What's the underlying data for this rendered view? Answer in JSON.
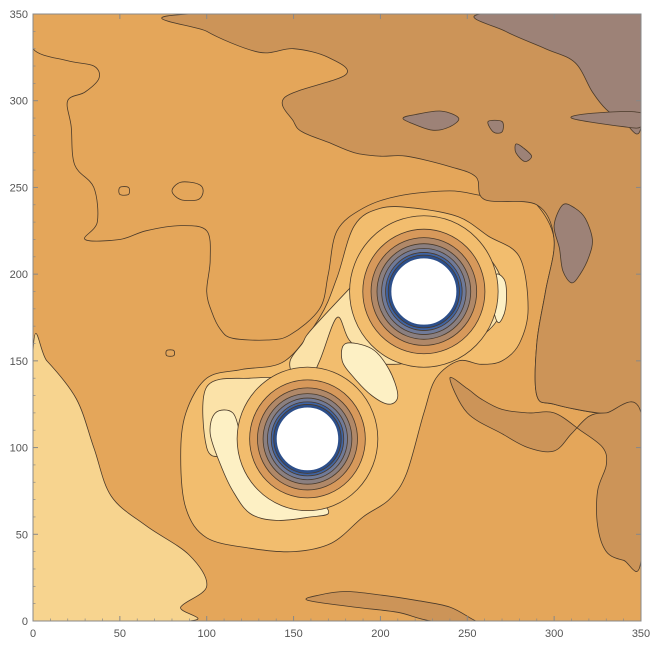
{
  "colors": {
    "level_1": "#f7d48f",
    "level_2": "#f2bd6e",
    "level_3": "#e4a65a",
    "level_4": "#cc9458",
    "level_5": "#9d8277",
    "highlight": "#fdf0c4",
    "pale": "#fbe2a8",
    "ring_1": "#d7995b",
    "ring_2": "#b08868",
    "ring_3": "#8a7f80",
    "ring_4": "#6f7a99",
    "ring_5": "#3e63a3",
    "ring_6": "#2d4f8a",
    "hole": "#ffffff",
    "frame": "#888888",
    "tick_text": "#555555"
  },
  "chart_data": {
    "type": "contour",
    "title": "",
    "xlabel": "",
    "ylabel": "",
    "xlim": [
      0,
      350
    ],
    "ylim": [
      0,
      350
    ],
    "x_ticks": [
      0,
      50,
      100,
      150,
      200,
      250,
      300,
      350
    ],
    "y_ticks": [
      0,
      50,
      100,
      150,
      200,
      250,
      300,
      350
    ],
    "x_tick_labels": [
      "0",
      "50",
      "100",
      "150",
      "200",
      "250",
      "300",
      "350"
    ],
    "y_tick_labels": [
      "0",
      "50",
      "100",
      "150",
      "200",
      "250",
      "300",
      "350"
    ],
    "grid": false,
    "legend": "none",
    "singularities": [
      {
        "x": 158,
        "y": 105,
        "radius": 18
      },
      {
        "x": 225,
        "y": 190,
        "radius": 19
      }
    ],
    "regions": [
      {
        "level": 1,
        "points": [
          [
            0,
            155
          ],
          [
            8,
            150
          ],
          [
            25,
            128
          ],
          [
            35,
            100
          ],
          [
            45,
            72
          ],
          [
            65,
            55
          ],
          [
            90,
            38
          ],
          [
            100,
            20
          ],
          [
            85,
            8
          ],
          [
            90,
            0
          ],
          [
            0,
            0
          ]
        ]
      },
      {
        "level": 3,
        "points": [
          [
            0,
            330
          ],
          [
            20,
            323
          ],
          [
            35,
            320
          ],
          [
            38,
            313
          ],
          [
            30,
            305
          ],
          [
            20,
            300
          ],
          [
            22,
            285
          ],
          [
            24,
            263
          ],
          [
            35,
            250
          ],
          [
            37,
            230
          ],
          [
            30,
            220
          ],
          [
            50,
            220
          ],
          [
            65,
            225
          ],
          [
            85,
            228
          ],
          [
            100,
            225
          ],
          [
            102,
            208
          ],
          [
            100,
            190
          ],
          [
            103,
            178
          ],
          [
            108,
            168
          ],
          [
            115,
            163
          ],
          [
            135,
            162
          ],
          [
            148,
            165
          ],
          [
            165,
            180
          ],
          [
            170,
            200
          ],
          [
            175,
            225
          ],
          [
            190,
            238
          ],
          [
            210,
            245
          ],
          [
            240,
            248
          ],
          [
            260,
            245
          ],
          [
            280,
            243
          ],
          [
            290,
            240
          ],
          [
            300,
            220
          ],
          [
            295,
            190
          ],
          [
            290,
            160
          ],
          [
            290,
            130
          ],
          [
            300,
            125
          ],
          [
            325,
            120
          ],
          [
            345,
            120
          ],
          [
            350,
            120
          ],
          [
            350,
            350
          ],
          [
            0,
            350
          ]
        ]
      },
      {
        "level": 4,
        "points": [
          [
            92,
            350
          ],
          [
            100,
            340
          ],
          [
            130,
            328
          ],
          [
            150,
            330
          ],
          [
            170,
            325
          ],
          [
            180,
            315
          ],
          [
            145,
            302
          ],
          [
            150,
            288
          ],
          [
            155,
            282
          ],
          [
            170,
            276
          ],
          [
            185,
            270
          ],
          [
            200,
            268
          ],
          [
            215,
            268
          ],
          [
            240,
            262
          ],
          [
            255,
            256
          ],
          [
            260,
            243
          ],
          [
            290,
            240
          ],
          [
            300,
            220
          ],
          [
            295,
            190
          ],
          [
            290,
            160
          ],
          [
            290,
            130
          ],
          [
            300,
            125
          ],
          [
            325,
            120
          ],
          [
            345,
            120
          ],
          [
            350,
            120
          ],
          [
            350,
            350
          ]
        ]
      },
      {
        "level": 4,
        "points": [
          [
            240,
            140
          ],
          [
            250,
            120
          ],
          [
            270,
            108
          ],
          [
            285,
            100
          ],
          [
            300,
            98
          ],
          [
            310,
            108
          ],
          [
            320,
            118
          ],
          [
            330,
            120
          ],
          [
            350,
            120
          ],
          [
            350,
            35
          ],
          [
            340,
            35
          ],
          [
            330,
            40
          ],
          [
            325,
            55
          ],
          [
            325,
            75
          ],
          [
            330,
            90
          ],
          [
            328,
            100
          ],
          [
            315,
            110
          ],
          [
            300,
            120
          ],
          [
            285,
            120
          ],
          [
            270,
            122
          ],
          [
            258,
            128
          ],
          [
            250,
            134
          ]
        ]
      },
      {
        "level": 4,
        "points": [
          [
            158,
            12
          ],
          [
            185,
            8
          ],
          [
            210,
            5
          ],
          [
            230,
            0
          ],
          [
            260,
            0
          ],
          [
            255,
            0
          ],
          [
            240,
            8
          ],
          [
            220,
            12
          ],
          [
            200,
            15
          ],
          [
            180,
            17
          ],
          [
            165,
            15
          ]
        ]
      },
      {
        "level": 5,
        "points": [
          [
            258,
            350
          ],
          [
            272,
            340
          ],
          [
            295,
            330
          ],
          [
            312,
            322
          ],
          [
            322,
            305
          ],
          [
            330,
            295
          ],
          [
            340,
            288
          ],
          [
            350,
            285
          ],
          [
            350,
            350
          ]
        ]
      },
      {
        "level": 5,
        "points": [
          [
            310,
            290
          ],
          [
            325,
            293
          ],
          [
            350,
            293
          ],
          [
            350,
            285
          ],
          [
            340,
            285
          ]
        ]
      },
      {
        "level": 5,
        "points": [
          [
            305,
            240
          ],
          [
            312,
            238
          ],
          [
            318,
            232
          ],
          [
            322,
            220
          ],
          [
            320,
            210
          ],
          [
            315,
            200
          ],
          [
            310,
            195
          ],
          [
            305,
            202
          ],
          [
            303,
            215
          ],
          [
            300,
            228
          ]
        ]
      },
      {
        "level": 5,
        "points": [
          [
            213,
            290
          ],
          [
            220,
            292
          ],
          [
            235,
            294
          ],
          [
            245,
            290
          ],
          [
            240,
            285
          ],
          [
            230,
            283
          ],
          [
            218,
            287
          ]
        ]
      },
      {
        "level": 5,
        "points": [
          [
            262,
            288
          ],
          [
            270,
            288
          ],
          [
            270,
            282
          ],
          [
            265,
            282
          ]
        ]
      },
      {
        "level": 5,
        "points": [
          [
            278,
            275
          ],
          [
            282,
            273
          ],
          [
            287,
            268
          ],
          [
            283,
            265
          ],
          [
            278,
            270
          ]
        ]
      },
      {
        "level": 2,
        "points": [
          [
            165,
            175
          ],
          [
            175,
            198
          ],
          [
            185,
            228
          ],
          [
            200,
            238
          ],
          [
            220,
            238
          ],
          [
            245,
            233
          ],
          [
            262,
            222
          ],
          [
            280,
            210
          ],
          [
            285,
            180
          ],
          [
            280,
            160
          ],
          [
            270,
            150
          ],
          [
            258,
            148
          ],
          [
            245,
            150
          ],
          [
            232,
            140
          ],
          [
            225,
            120
          ],
          [
            215,
            85
          ],
          [
            205,
            70
          ],
          [
            190,
            60
          ],
          [
            172,
            45
          ],
          [
            150,
            40
          ],
          [
            125,
            42
          ],
          [
            100,
            48
          ],
          [
            88,
            65
          ],
          [
            85,
            95
          ],
          [
            88,
            120
          ],
          [
            100,
            140
          ],
          [
            120,
            145
          ],
          [
            145,
            150
          ]
        ]
      },
      {
        "level": "pale",
        "points": [
          [
            200,
            210
          ],
          [
            215,
            222
          ],
          [
            235,
            223
          ],
          [
            250,
            218
          ],
          [
            262,
            210
          ],
          [
            270,
            195
          ],
          [
            268,
            175
          ],
          [
            255,
            162
          ],
          [
            240,
            155
          ],
          [
            222,
            150
          ],
          [
            208,
            148
          ],
          [
            195,
            150
          ],
          [
            182,
            162
          ],
          [
            175,
            175
          ],
          [
            165,
            150
          ],
          [
            155,
            130
          ],
          [
            150,
            140
          ],
          [
            148,
            150
          ],
          [
            155,
            160
          ],
          [
            162,
            170
          ]
        ]
      },
      {
        "level": "pale",
        "points": [
          [
            155,
            127
          ],
          [
            170,
            135
          ],
          [
            180,
            125
          ],
          [
            190,
            110
          ],
          [
            190,
            95
          ],
          [
            180,
            80
          ],
          [
            165,
            68
          ],
          [
            150,
            70
          ],
          [
            135,
            75
          ],
          [
            125,
            90
          ],
          [
            128,
            105
          ],
          [
            140,
            120
          ]
        ]
      },
      {
        "level": "pale",
        "points": [
          [
            100,
            135
          ],
          [
            125,
            140
          ],
          [
            150,
            138
          ],
          [
            155,
            120
          ],
          [
            145,
            110
          ],
          [
            125,
            100
          ],
          [
            110,
            95
          ],
          [
            100,
            100
          ]
        ]
      },
      {
        "level": "highlight",
        "points": [
          [
            180,
            160
          ],
          [
            195,
            157
          ],
          [
            205,
            145
          ],
          [
            210,
            130
          ],
          [
            205,
            125
          ],
          [
            195,
            130
          ],
          [
            185,
            140
          ],
          [
            178,
            150
          ]
        ]
      },
      {
        "level": "highlight",
        "points": [
          [
            105,
            120
          ],
          [
            115,
            120
          ],
          [
            120,
            105
          ],
          [
            125,
            90
          ],
          [
            130,
            80
          ],
          [
            145,
            72
          ],
          [
            165,
            68
          ],
          [
            170,
            62
          ],
          [
            160,
            60
          ],
          [
            140,
            58
          ],
          [
            125,
            62
          ],
          [
            115,
            75
          ],
          [
            108,
            90
          ],
          [
            102,
            108
          ]
        ]
      },
      {
        "level": "highlight",
        "points": [
          [
            267,
            200
          ],
          [
            272,
            195
          ],
          [
            272,
            180
          ],
          [
            268,
            172
          ],
          [
            265,
            180
          ],
          [
            265,
            192
          ]
        ]
      },
      {
        "level": 3,
        "points": [
          [
            80,
            248
          ],
          [
            85,
            253
          ],
          [
            95,
            252
          ],
          [
            98,
            248
          ],
          [
            95,
            243
          ],
          [
            85,
            243
          ]
        ]
      },
      {
        "level": 3,
        "points": [
          [
            50,
            250
          ],
          [
            55,
            250
          ],
          [
            55,
            246
          ],
          [
            50,
            246
          ]
        ]
      },
      {
        "level": 3,
        "points": [
          [
            77,
            156
          ],
          [
            81,
            156
          ],
          [
            81,
            153
          ],
          [
            77,
            153
          ]
        ]
      }
    ]
  }
}
